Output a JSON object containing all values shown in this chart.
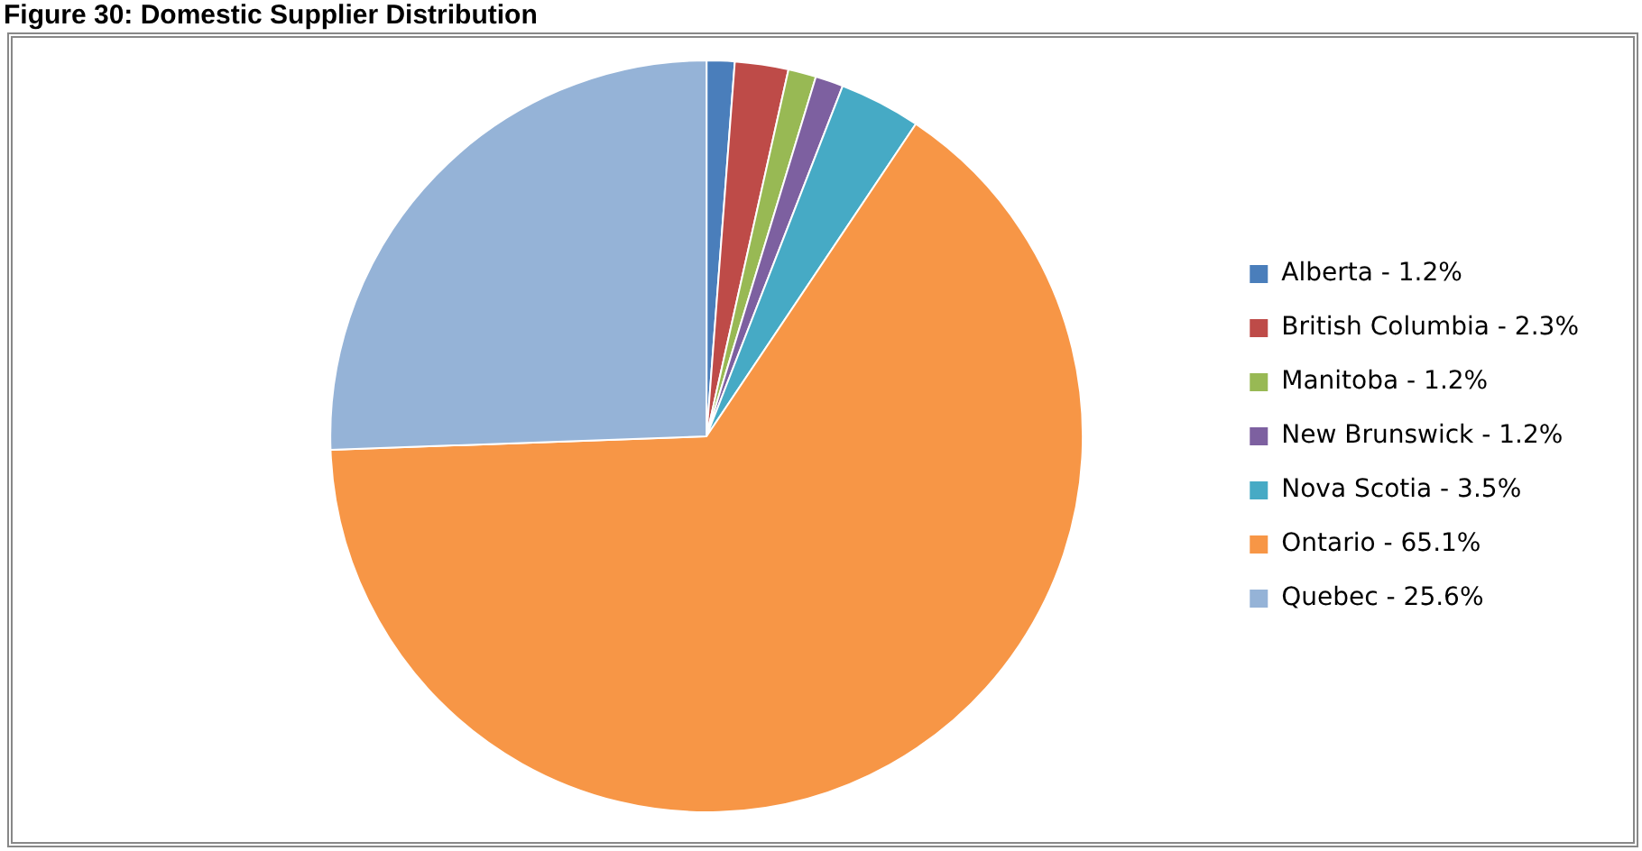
{
  "chart_data": {
    "type": "pie",
    "title": "Figure 30: Domestic Supplier Distribution",
    "categories": [
      "Alberta - 1.2%",
      "British Columbia - 2.3%",
      "Manitoba - 1.2%",
      "New Brunswick - 1.2%",
      "Nova Scotia - 3.5%",
      "Ontario - 65.1%",
      "Quebec - 25.6%"
    ],
    "values": [
      1.2,
      2.3,
      1.2,
      1.2,
      3.5,
      65.1,
      25.6
    ],
    "colors": [
      "#4a7ebb",
      "#be4b48",
      "#98b954",
      "#7d60a0",
      "#46aac5",
      "#f79646",
      "#95b3d7"
    ],
    "legend": "right"
  }
}
